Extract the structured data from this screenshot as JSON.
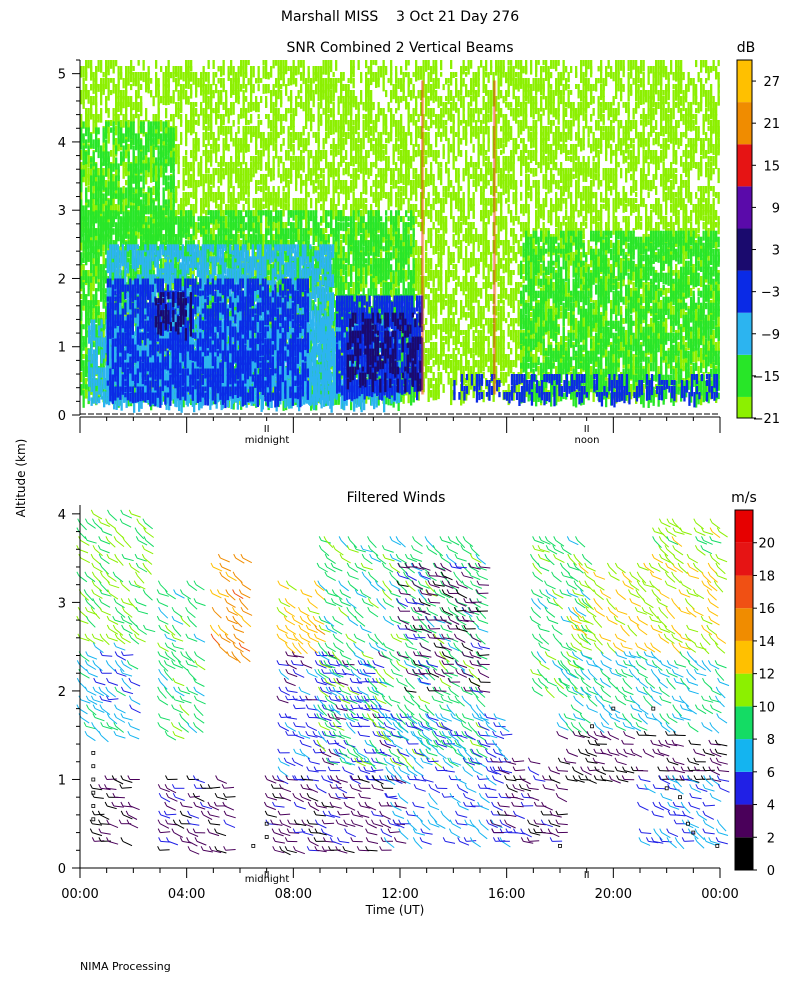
{
  "page": {
    "title": "Marshall MISS    3 Oct 21 Day 276",
    "y_axis_label": "Altitude (km)",
    "footer": "NIMA Processing",
    "day_markers": {
      "midnight": "midnight",
      "noon": "noon",
      "tick_symbol": "II"
    }
  },
  "chart_data": [
    {
      "type": "heatmap",
      "title": "SNR Combined 2 Vertical Beams",
      "ylabel": "Altitude (km)",
      "ylim": [
        0,
        5.2
      ],
      "yticks": [
        "0",
        "1",
        "2",
        "3",
        "4",
        "5"
      ],
      "x_range_hours": [
        0,
        24
      ],
      "colorbar": {
        "unit": "dB",
        "ticks": [
          "27",
          "21",
          "15",
          "9",
          "3",
          "−3",
          "−9",
          "−15",
          "−21"
        ],
        "bands": [
          {
            "min": -21,
            "max": -18,
            "color": "#8cf000"
          },
          {
            "min": -18,
            "max": -12,
            "color": "#28e628"
          },
          {
            "min": -12,
            "max": -6,
            "color": "#2cb4f0"
          },
          {
            "min": -6,
            "max": 0,
            "color": "#0a2ae6"
          },
          {
            "min": 0,
            "max": 6,
            "color": "#1a0a6e"
          },
          {
            "min": 6,
            "max": 12,
            "color": "#5a0aaa"
          },
          {
            "min": 12,
            "max": 18,
            "color": "#e61414"
          },
          {
            "min": 18,
            "max": 24,
            "color": "#f08c00"
          },
          {
            "min": 24,
            "max": 30,
            "color": "#ffc000"
          }
        ]
      },
      "regions": [
        {
          "t0": 0.0,
          "t1": 24.0,
          "z0": 0.3,
          "z1": 5.2,
          "band": 0,
          "density": 0.5
        },
        {
          "t0": 0.0,
          "t1": 12.5,
          "z0": 0.25,
          "z1": 3.0,
          "band": 1,
          "density": 0.55
        },
        {
          "t0": 0.0,
          "t1": 3.5,
          "z0": 2.5,
          "z1": 4.3,
          "band": 1,
          "density": 0.5
        },
        {
          "t0": 16.5,
          "t1": 24.0,
          "z0": 0.25,
          "z1": 2.7,
          "band": 1,
          "density": 0.55
        },
        {
          "t0": 1.0,
          "t1": 9.5,
          "z0": 0.3,
          "z1": 2.5,
          "band": 2,
          "density": 0.6
        },
        {
          "t0": 0.3,
          "t1": 12.0,
          "z0": 0.25,
          "z1": 1.4,
          "band": 2,
          "density": 0.6
        },
        {
          "t0": 1.0,
          "t1": 8.5,
          "z0": 0.3,
          "z1": 2.0,
          "band": 3,
          "density": 0.6
        },
        {
          "t0": 9.6,
          "t1": 12.8,
          "z0": 0.35,
          "z1": 1.75,
          "band": 3,
          "density": 0.8
        },
        {
          "t0": 14.0,
          "t1": 24.0,
          "z0": 0.25,
          "z1": 0.6,
          "band": 3,
          "density": 0.45
        },
        {
          "t0": 10.0,
          "t1": 12.8,
          "z0": 0.45,
          "z1": 1.5,
          "band": 4,
          "density": 0.45
        },
        {
          "t0": 2.8,
          "t1": 4.2,
          "z0": 1.2,
          "z1": 1.8,
          "band": 4,
          "density": 0.4
        }
      ]
    },
    {
      "type": "scatter",
      "title": "Filtered Winds",
      "xlabel": "Time (UT)",
      "ylabel": "Altitude (km)",
      "ylim": [
        0,
        4.1
      ],
      "yticks": [
        "0",
        "1",
        "2",
        "3",
        "4"
      ],
      "x_range_hours": [
        0,
        24
      ],
      "xticks": [
        "00:00",
        "04:00",
        "08:00",
        "12:00",
        "16:00",
        "20:00",
        "00:00"
      ],
      "colorbar": {
        "unit": "m/s",
        "ticks": [
          "20",
          "18",
          "16",
          "14",
          "12",
          "10",
          "8",
          "6",
          "4",
          "2",
          "0"
        ],
        "bands": [
          {
            "min": 0,
            "max": 2,
            "color": "#000000"
          },
          {
            "min": 2,
            "max": 4,
            "color": "#4a005a"
          },
          {
            "min": 4,
            "max": 6,
            "color": "#2020e6"
          },
          {
            "min": 6,
            "max": 8,
            "color": "#14b4f0"
          },
          {
            "min": 8,
            "max": 10,
            "color": "#14dc64"
          },
          {
            "min": 10,
            "max": 12,
            "color": "#8cf000"
          },
          {
            "min": 12,
            "max": 14,
            "color": "#ffc000"
          },
          {
            "min": 14,
            "max": 16,
            "color": "#f08c00"
          },
          {
            "min": 16,
            "max": 18,
            "color": "#f05014"
          },
          {
            "min": 18,
            "max": 20,
            "color": "#e61414"
          },
          {
            "min": 20,
            "max": 22,
            "color": "#e60000"
          }
        ]
      },
      "wind_field": [
        {
          "t0": 0.0,
          "t1": 2.5,
          "z0": 2.6,
          "z1": 4.1,
          "speed": 10
        },
        {
          "t0": 0.0,
          "t1": 2.0,
          "z0": 1.5,
          "z1": 2.6,
          "speed": 7
        },
        {
          "t0": 0.5,
          "t1": 2.0,
          "z0": 0.3,
          "z1": 1.0,
          "speed": 2
        },
        {
          "t0": 3.0,
          "t1": 5.5,
          "z0": 0.2,
          "z1": 1.0,
          "speed": 3
        },
        {
          "t0": 3.0,
          "t1": 4.5,
          "z0": 1.5,
          "z1": 3.3,
          "speed": 9
        },
        {
          "t0": 5.0,
          "t1": 6.2,
          "z0": 2.4,
          "z1": 3.6,
          "speed": 15
        },
        {
          "t0": 7.5,
          "t1": 9.0,
          "z0": 2.5,
          "z1": 3.3,
          "speed": 13
        },
        {
          "t0": 7.5,
          "t1": 11.5,
          "z0": 1.0,
          "z1": 2.5,
          "speed": 5
        },
        {
          "t0": 7.0,
          "t1": 12.0,
          "z0": 0.2,
          "z1": 1.0,
          "speed": 3
        },
        {
          "t0": 9.0,
          "t1": 15.0,
          "z0": 1.2,
          "z1": 3.8,
          "speed": 9
        },
        {
          "t0": 11.5,
          "t1": 16.0,
          "z0": 0.3,
          "z1": 1.8,
          "speed": 6
        },
        {
          "t0": 12.0,
          "t1": 15.0,
          "z0": 2.0,
          "z1": 3.5,
          "speed": 3
        },
        {
          "t0": 15.5,
          "t1": 18.0,
          "z0": 0.3,
          "z1": 1.3,
          "speed": 3
        },
        {
          "t0": 17.0,
          "t1": 19.0,
          "z0": 2.0,
          "z1": 3.8,
          "speed": 9
        },
        {
          "t0": 18.5,
          "t1": 24.0,
          "z0": 2.5,
          "z1": 3.5,
          "speed": 12
        },
        {
          "t0": 18.0,
          "t1": 24.0,
          "z0": 1.6,
          "z1": 2.5,
          "speed": 8
        },
        {
          "t0": 18.0,
          "t1": 24.0,
          "z0": 1.0,
          "z1": 1.6,
          "speed": 2
        },
        {
          "t0": 21.0,
          "t1": 24.0,
          "z0": 0.3,
          "z1": 1.0,
          "speed": 6
        },
        {
          "t0": 21.5,
          "t1": 24.0,
          "z0": 3.5,
          "z1": 4.0,
          "speed": 11
        }
      ],
      "missing_markers": [
        {
          "t": 0.5,
          "z": 1.3
        },
        {
          "t": 0.5,
          "z": 1.15
        },
        {
          "t": 0.5,
          "z": 1.0
        },
        {
          "t": 0.5,
          "z": 0.85
        },
        {
          "t": 0.5,
          "z": 0.7
        },
        {
          "t": 0.5,
          "z": 0.55
        },
        {
          "t": 6.5,
          "z": 0.25
        },
        {
          "t": 7.0,
          "z": 0.5
        },
        {
          "t": 7.0,
          "z": 0.35
        },
        {
          "t": 18.0,
          "z": 0.25
        },
        {
          "t": 19.2,
          "z": 1.6
        },
        {
          "t": 20.0,
          "z": 1.8
        },
        {
          "t": 21.5,
          "z": 1.8
        },
        {
          "t": 22.0,
          "z": 0.9
        },
        {
          "t": 22.5,
          "z": 0.8
        },
        {
          "t": 22.8,
          "z": 0.5
        },
        {
          "t": 23.0,
          "z": 0.4
        },
        {
          "t": 23.9,
          "z": 0.25
        }
      ]
    }
  ]
}
